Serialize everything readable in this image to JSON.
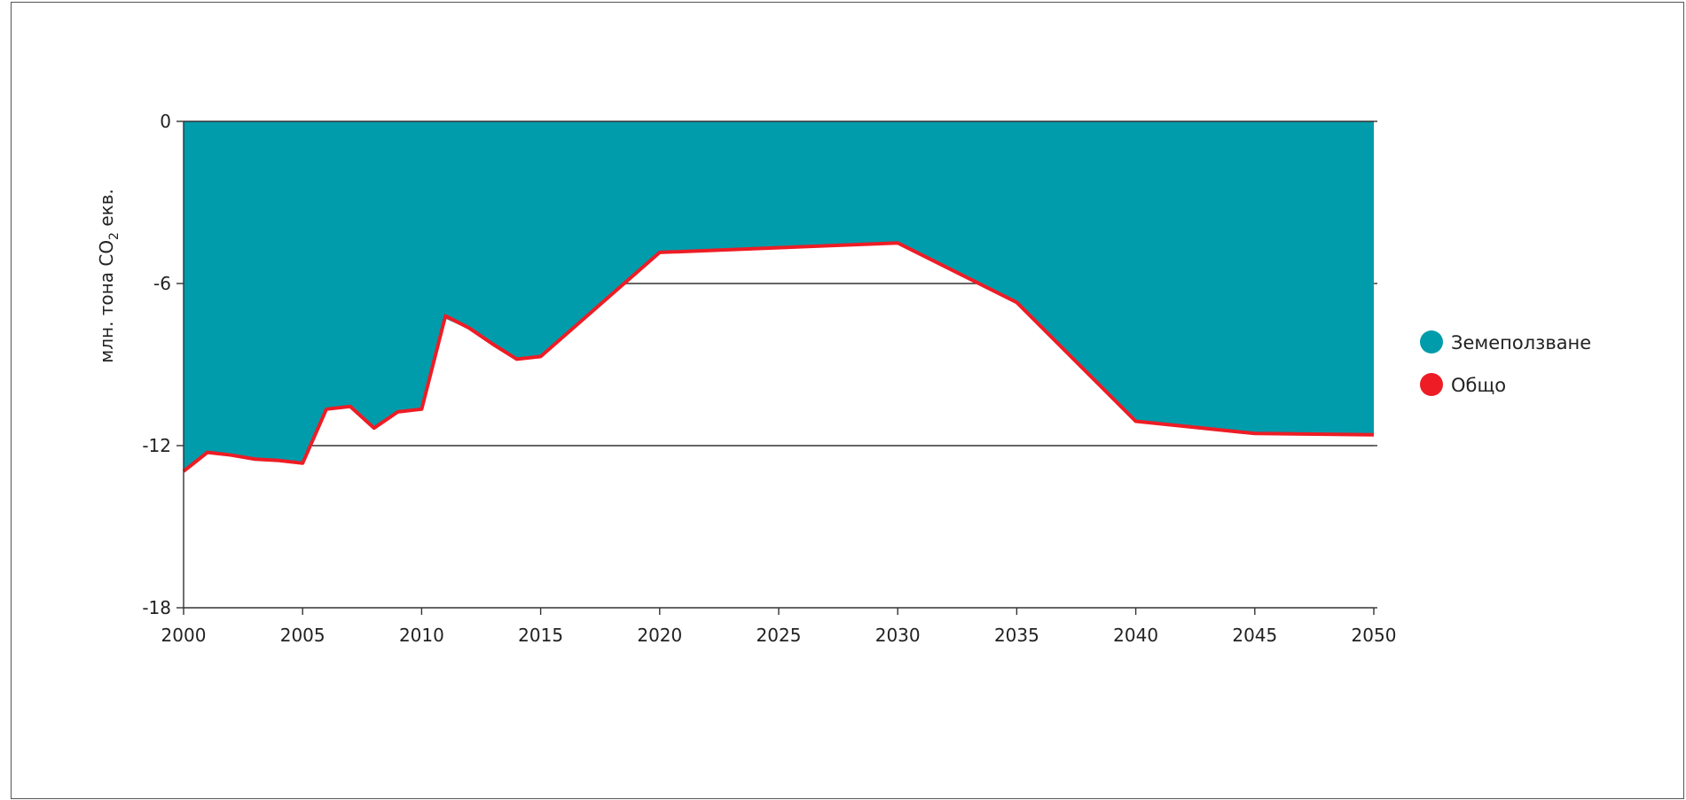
{
  "chart_data": {
    "type": "area",
    "ylabel_main": "млн. тона CO",
    "ylabel_sub": "2",
    "ylabel_suffix": " екв.",
    "xlim": [
      2000,
      2050
    ],
    "ylim": [
      -18,
      0
    ],
    "xticks": [
      2000,
      2005,
      2010,
      2015,
      2020,
      2025,
      2030,
      2035,
      2040,
      2045,
      2050
    ],
    "yticks": [
      0,
      -6,
      -12,
      -18
    ],
    "gridlines_y": [
      -6,
      -12
    ],
    "legend_position": "right",
    "series": [
      {
        "name": "Земеползване",
        "kind": "area",
        "color": "#009CAB",
        "x": [
          2000,
          2001,
          2002,
          2003,
          2004,
          2005,
          2006,
          2007,
          2008,
          2009,
          2010,
          2011,
          2012,
          2013,
          2014,
          2015,
          2020,
          2030,
          2035,
          2040,
          2045,
          2050
        ],
        "y": [
          -12.9,
          -12.2,
          -12.3,
          -12.45,
          -12.5,
          -12.6,
          -10.6,
          -10.5,
          -11.3,
          -10.7,
          -10.6,
          -7.3,
          -7.7,
          -8.3,
          -8.8,
          -8.7,
          -4.9,
          -4.5,
          -6.7,
          -11.1,
          -11.55,
          -11.6
        ]
      },
      {
        "name": "Общо",
        "kind": "line",
        "color": "#EE1C25",
        "x": [
          2000,
          2001,
          2002,
          2003,
          2004,
          2005,
          2006,
          2007,
          2008,
          2009,
          2010,
          2011,
          2012,
          2013,
          2014,
          2015,
          2020,
          2030,
          2035,
          2040,
          2045,
          2050
        ],
        "y": [
          -12.95,
          -12.25,
          -12.35,
          -12.5,
          -12.55,
          -12.65,
          -10.65,
          -10.55,
          -11.35,
          -10.75,
          -10.65,
          -7.2,
          -7.65,
          -8.25,
          -8.8,
          -8.7,
          -4.85,
          -4.5,
          -6.7,
          -11.1,
          -11.55,
          -11.6
        ]
      }
    ]
  }
}
